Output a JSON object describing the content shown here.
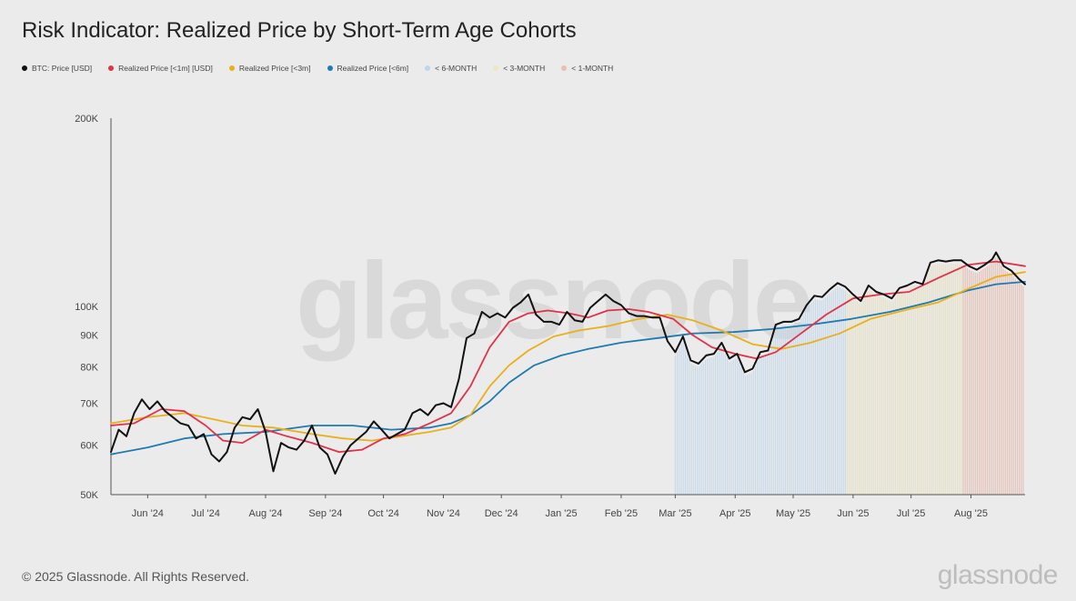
{
  "title": "Risk Indicator: Realized Price by Short-Term Age Cohorts",
  "footer": "© 2025 Glassnode. All Rights Reserved.",
  "brand": "glassnode",
  "watermark": "glassnode",
  "chart_data": {
    "type": "line",
    "title": "Risk Indicator: Realized Price by Short-Term Age Cohorts",
    "yscale": "log",
    "ylim": [
      50000,
      200000
    ],
    "yticks": [
      {
        "value": 50000,
        "label": "50K"
      },
      {
        "value": 60000,
        "label": "60K"
      },
      {
        "value": 70000,
        "label": "70K"
      },
      {
        "value": 80000,
        "label": "80K"
      },
      {
        "value": 90000,
        "label": "90K"
      },
      {
        "value": 100000,
        "label": "100K"
      },
      {
        "value": 200000,
        "label": "200K"
      }
    ],
    "xlim": [
      "2024-05-13",
      "2025-08-29"
    ],
    "xticks": [
      {
        "date": "2024-06-01",
        "label": "Jun '24"
      },
      {
        "date": "2024-07-01",
        "label": "Jul '24"
      },
      {
        "date": "2024-08-01",
        "label": "Aug '24"
      },
      {
        "date": "2024-09-01",
        "label": "Sep '24"
      },
      {
        "date": "2024-10-01",
        "label": "Oct '24"
      },
      {
        "date": "2024-11-01",
        "label": "Nov '24"
      },
      {
        "date": "2024-12-01",
        "label": "Dec '24"
      },
      {
        "date": "2025-01-01",
        "label": "Jan '25"
      },
      {
        "date": "2025-02-01",
        "label": "Feb '25"
      },
      {
        "date": "2025-03-01",
        "label": "Mar '25"
      },
      {
        "date": "2025-04-01",
        "label": "Apr '25"
      },
      {
        "date": "2025-05-01",
        "label": "May '25"
      },
      {
        "date": "2025-06-01",
        "label": "Jun '25"
      },
      {
        "date": "2025-07-01",
        "label": "Jul '25"
      },
      {
        "date": "2025-08-01",
        "label": "Aug '25"
      }
    ],
    "grid": false,
    "legend_position": "top-left",
    "series": [
      {
        "name": "BTC: Price [USD]",
        "color": "#111111",
        "width": 2,
        "points": [
          [
            "2024-05-13",
            58500
          ],
          [
            "2024-05-17",
            63500
          ],
          [
            "2024-05-21",
            62000
          ],
          [
            "2024-05-25",
            67500
          ],
          [
            "2024-05-29",
            71000
          ],
          [
            "2024-06-02",
            68500
          ],
          [
            "2024-06-06",
            70500
          ],
          [
            "2024-06-10",
            68000
          ],
          [
            "2024-06-14",
            66500
          ],
          [
            "2024-06-18",
            65000
          ],
          [
            "2024-06-22",
            64500
          ],
          [
            "2024-06-26",
            61500
          ],
          [
            "2024-06-30",
            62500
          ],
          [
            "2024-07-04",
            58000
          ],
          [
            "2024-07-08",
            56500
          ],
          [
            "2024-07-12",
            58500
          ],
          [
            "2024-07-16",
            64000
          ],
          [
            "2024-07-20",
            66500
          ],
          [
            "2024-07-24",
            66000
          ],
          [
            "2024-07-28",
            68500
          ],
          [
            "2024-08-01",
            63000
          ],
          [
            "2024-08-05",
            54500
          ],
          [
            "2024-08-09",
            60500
          ],
          [
            "2024-08-13",
            59500
          ],
          [
            "2024-08-17",
            59000
          ],
          [
            "2024-08-21",
            61000
          ],
          [
            "2024-08-25",
            64500
          ],
          [
            "2024-08-29",
            59500
          ],
          [
            "2024-09-02",
            58000
          ],
          [
            "2024-09-06",
            54000
          ],
          [
            "2024-09-10",
            57500
          ],
          [
            "2024-09-14",
            60000
          ],
          [
            "2024-09-18",
            61500
          ],
          [
            "2024-09-22",
            63000
          ],
          [
            "2024-09-26",
            65500
          ],
          [
            "2024-09-30",
            63500
          ],
          [
            "2024-10-04",
            61500
          ],
          [
            "2024-10-08",
            62500
          ],
          [
            "2024-10-12",
            63500
          ],
          [
            "2024-10-16",
            67500
          ],
          [
            "2024-10-20",
            68500
          ],
          [
            "2024-10-24",
            67000
          ],
          [
            "2024-10-28",
            69500
          ],
          [
            "2024-11-01",
            70000
          ],
          [
            "2024-11-05",
            69000
          ],
          [
            "2024-11-09",
            76500
          ],
          [
            "2024-11-13",
            89000
          ],
          [
            "2024-11-17",
            90500
          ],
          [
            "2024-11-21",
            98000
          ],
          [
            "2024-11-25",
            96000
          ],
          [
            "2024-11-29",
            97500
          ],
          [
            "2024-12-03",
            96000
          ],
          [
            "2024-12-07",
            99500
          ],
          [
            "2024-12-11",
            101500
          ],
          [
            "2024-12-15",
            104500
          ],
          [
            "2024-12-19",
            97000
          ],
          [
            "2024-12-23",
            94500
          ],
          [
            "2024-12-27",
            94500
          ],
          [
            "2024-12-31",
            93500
          ],
          [
            "2025-01-04",
            98000
          ],
          [
            "2025-01-08",
            95000
          ],
          [
            "2025-01-12",
            94500
          ],
          [
            "2025-01-16",
            99500
          ],
          [
            "2025-01-20",
            102000
          ],
          [
            "2025-01-24",
            104500
          ],
          [
            "2025-01-28",
            102000
          ],
          [
            "2025-02-01",
            100500
          ],
          [
            "2025-02-05",
            97500
          ],
          [
            "2025-02-09",
            96500
          ],
          [
            "2025-02-13",
            96500
          ],
          [
            "2025-02-17",
            96000
          ],
          [
            "2025-02-21",
            96000
          ],
          [
            "2025-02-25",
            88000
          ],
          [
            "2025-03-01",
            84500
          ],
          [
            "2025-03-05",
            89500
          ],
          [
            "2025-03-09",
            82000
          ],
          [
            "2025-03-13",
            81000
          ],
          [
            "2025-03-17",
            83500
          ],
          [
            "2025-03-21",
            84000
          ],
          [
            "2025-03-25",
            87500
          ],
          [
            "2025-03-29",
            82500
          ],
          [
            "2025-04-02",
            84000
          ],
          [
            "2025-04-06",
            78500
          ],
          [
            "2025-04-10",
            79500
          ],
          [
            "2025-04-14",
            84500
          ],
          [
            "2025-04-18",
            85000
          ],
          [
            "2025-04-22",
            93500
          ],
          [
            "2025-04-26",
            94500
          ],
          [
            "2025-04-30",
            94500
          ],
          [
            "2025-05-04",
            95500
          ],
          [
            "2025-05-08",
            100500
          ],
          [
            "2025-05-12",
            104000
          ],
          [
            "2025-05-16",
            103500
          ],
          [
            "2025-05-20",
            106500
          ],
          [
            "2025-05-24",
            109000
          ],
          [
            "2025-05-28",
            107500
          ],
          [
            "2025-06-01",
            104500
          ],
          [
            "2025-06-05",
            102000
          ],
          [
            "2025-06-09",
            108000
          ],
          [
            "2025-06-13",
            105500
          ],
          [
            "2025-06-17",
            104500
          ],
          [
            "2025-06-21",
            103000
          ],
          [
            "2025-06-25",
            107000
          ],
          [
            "2025-06-29",
            108000
          ],
          [
            "2025-07-03",
            109500
          ],
          [
            "2025-07-07",
            108500
          ],
          [
            "2025-07-11",
            117500
          ],
          [
            "2025-07-15",
            118500
          ],
          [
            "2025-07-19",
            118000
          ],
          [
            "2025-07-23",
            118500
          ],
          [
            "2025-07-27",
            118500
          ],
          [
            "2025-07-31",
            116000
          ],
          [
            "2025-08-04",
            114500
          ],
          [
            "2025-08-08",
            116500
          ],
          [
            "2025-08-12",
            119000
          ],
          [
            "2025-08-14",
            122000
          ],
          [
            "2025-08-18",
            116000
          ],
          [
            "2025-08-22",
            114000
          ],
          [
            "2025-08-26",
            110500
          ],
          [
            "2025-08-29",
            108500
          ]
        ]
      },
      {
        "name": "Realized Price [<1m] [USD]",
        "color": "#e0324a",
        "width": 1.8,
        "points": [
          [
            "2024-05-13",
            64500
          ],
          [
            "2024-05-25",
            65000
          ],
          [
            "2024-06-08",
            68500
          ],
          [
            "2024-06-20",
            68000
          ],
          [
            "2024-07-01",
            64500
          ],
          [
            "2024-07-10",
            61000
          ],
          [
            "2024-07-20",
            60500
          ],
          [
            "2024-08-01",
            63500
          ],
          [
            "2024-08-12",
            62000
          ],
          [
            "2024-08-25",
            60500
          ],
          [
            "2024-09-08",
            58500
          ],
          [
            "2024-09-20",
            59000
          ],
          [
            "2024-10-01",
            61500
          ],
          [
            "2024-10-12",
            62500
          ],
          [
            "2024-10-25",
            65000
          ],
          [
            "2024-11-05",
            67500
          ],
          [
            "2024-11-15",
            74500
          ],
          [
            "2024-11-25",
            86000
          ],
          [
            "2024-12-05",
            94500
          ],
          [
            "2024-12-15",
            97500
          ],
          [
            "2024-12-25",
            98500
          ],
          [
            "2025-01-05",
            97500
          ],
          [
            "2025-01-15",
            96000
          ],
          [
            "2025-01-25",
            98500
          ],
          [
            "2025-02-05",
            99000
          ],
          [
            "2025-02-15",
            98000
          ],
          [
            "2025-02-28",
            95500
          ],
          [
            "2025-03-10",
            90000
          ],
          [
            "2025-03-20",
            86000
          ],
          [
            "2025-04-01",
            84000
          ],
          [
            "2025-04-12",
            82500
          ],
          [
            "2025-04-22",
            84500
          ],
          [
            "2025-05-05",
            90500
          ],
          [
            "2025-05-18",
            97000
          ],
          [
            "2025-06-01",
            103000
          ],
          [
            "2025-06-15",
            104500
          ],
          [
            "2025-06-30",
            105500
          ],
          [
            "2025-07-15",
            111000
          ],
          [
            "2025-07-30",
            116500
          ],
          [
            "2025-08-14",
            118000
          ],
          [
            "2025-08-29",
            116000
          ]
        ]
      },
      {
        "name": "Realized Price [<3m]",
        "color": "#e8b01a",
        "width": 1.8,
        "points": [
          [
            "2024-05-13",
            65000
          ],
          [
            "2024-06-01",
            66500
          ],
          [
            "2024-06-20",
            67500
          ],
          [
            "2024-07-05",
            66000
          ],
          [
            "2024-07-20",
            64500
          ],
          [
            "2024-08-05",
            64000
          ],
          [
            "2024-08-25",
            62500
          ],
          [
            "2024-09-10",
            61500
          ],
          [
            "2024-09-25",
            61000
          ],
          [
            "2024-10-10",
            62000
          ],
          [
            "2024-10-25",
            63000
          ],
          [
            "2024-11-05",
            64000
          ],
          [
            "2024-11-15",
            67000
          ],
          [
            "2024-11-25",
            74500
          ],
          [
            "2024-12-05",
            80500
          ],
          [
            "2024-12-15",
            85000
          ],
          [
            "2024-12-28",
            89500
          ],
          [
            "2025-01-10",
            91500
          ],
          [
            "2025-01-25",
            93000
          ],
          [
            "2025-02-10",
            95500
          ],
          [
            "2025-02-25",
            97000
          ],
          [
            "2025-03-10",
            95000
          ],
          [
            "2025-03-25",
            91500
          ],
          [
            "2025-04-10",
            87000
          ],
          [
            "2025-04-25",
            85500
          ],
          [
            "2025-05-10",
            87500
          ],
          [
            "2025-05-25",
            90500
          ],
          [
            "2025-06-10",
            95500
          ],
          [
            "2025-06-30",
            99000
          ],
          [
            "2025-07-15",
            101500
          ],
          [
            "2025-07-30",
            106500
          ],
          [
            "2025-08-14",
            111500
          ],
          [
            "2025-08-29",
            113500
          ]
        ]
      },
      {
        "name": "Realized Price [<6m]",
        "color": "#1f7ab0",
        "width": 1.8,
        "points": [
          [
            "2024-05-13",
            58000
          ],
          [
            "2024-06-01",
            59500
          ],
          [
            "2024-06-20",
            61500
          ],
          [
            "2024-07-10",
            62500
          ],
          [
            "2024-08-01",
            63000
          ],
          [
            "2024-08-25",
            64500
          ],
          [
            "2024-09-15",
            64500
          ],
          [
            "2024-10-05",
            63500
          ],
          [
            "2024-10-25",
            64000
          ],
          [
            "2024-11-05",
            65000
          ],
          [
            "2024-11-15",
            67000
          ],
          [
            "2024-11-25",
            70500
          ],
          [
            "2024-12-05",
            75500
          ],
          [
            "2024-12-18",
            80500
          ],
          [
            "2025-01-01",
            83500
          ],
          [
            "2025-01-15",
            85500
          ],
          [
            "2025-02-01",
            87500
          ],
          [
            "2025-02-20",
            89000
          ],
          [
            "2025-03-10",
            90500
          ],
          [
            "2025-03-31",
            91000
          ],
          [
            "2025-04-20",
            92000
          ],
          [
            "2025-05-10",
            93500
          ],
          [
            "2025-05-31",
            95500
          ],
          [
            "2025-06-20",
            98000
          ],
          [
            "2025-07-10",
            101500
          ],
          [
            "2025-07-30",
            106000
          ],
          [
            "2025-08-14",
            108500
          ],
          [
            "2025-08-29",
            109500
          ]
        ]
      }
    ],
    "bands": [
      {
        "name": "< 6-MONTH",
        "color": "#bfd6ea",
        "start": "2025-03-01",
        "end": "2025-05-29"
      },
      {
        "name": "< 3-MONTH",
        "color": "#e6dfbf",
        "start": "2025-05-29",
        "end": "2025-07-28"
      },
      {
        "name": "< 1-MONTH",
        "color": "#e3b6a8",
        "start": "2025-07-28",
        "end": "2025-08-29"
      }
    ]
  },
  "legend": [
    {
      "label": "BTC: Price [USD]",
      "color": "#111111"
    },
    {
      "label": "Realized Price [<1m] [USD]",
      "color": "#e0324a"
    },
    {
      "label": "Realized Price [<3m]",
      "color": "#e8b01a"
    },
    {
      "label": "Realized Price [<6m]",
      "color": "#1f7ab0"
    },
    {
      "label": "< 6-MONTH",
      "color": "#bfd6ea"
    },
    {
      "label": "< 3-MONTH",
      "color": "#efe4c4"
    },
    {
      "label": "< 1-MONTH",
      "color": "#e8bfb2"
    }
  ]
}
